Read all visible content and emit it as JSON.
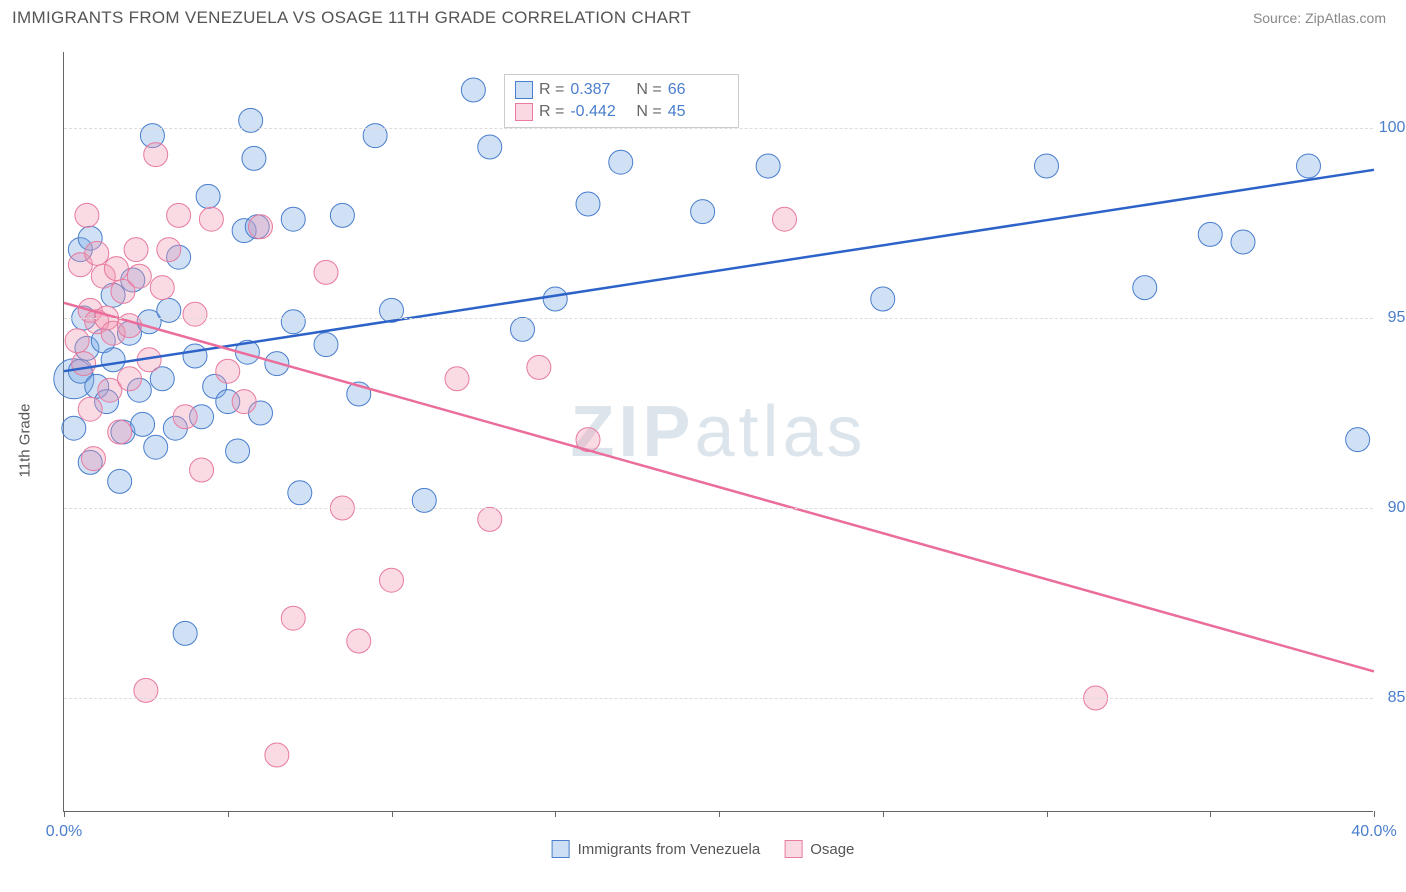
{
  "header": {
    "title": "IMMIGRANTS FROM VENEZUELA VS OSAGE 11TH GRADE CORRELATION CHART",
    "source": "Source: ZipAtlas.com"
  },
  "chart": {
    "type": "scatter",
    "ylabel": "11th Grade",
    "watermark_part1": "ZIP",
    "watermark_part2": "atlas",
    "xlim": [
      0,
      40
    ],
    "ylim": [
      82,
      102
    ],
    "xticks": [
      0,
      5,
      10,
      15,
      20,
      25,
      30,
      35,
      40
    ],
    "xtick_labels_shown": [
      {
        "v": 0,
        "t": "0.0%"
      },
      {
        "v": 40,
        "t": "40.0%"
      }
    ],
    "yticks": [
      {
        "v": 85,
        "t": "85.0%"
      },
      {
        "v": 90,
        "t": "90.0%"
      },
      {
        "v": 95,
        "t": "95.0%"
      },
      {
        "v": 100,
        "t": "100.0%"
      }
    ],
    "grid_color": "#dddddd",
    "background_color": "#ffffff",
    "axis_color": "#666666",
    "tick_label_color": "#4a7ecc",
    "marker_radius": 12,
    "marker_radius_large": 20,
    "series": [
      {
        "name": "Immigrants from Venezuela",
        "color_fill": "rgba(120,170,230,0.35)",
        "color_stroke": "#4a7ecc",
        "trend_color": "#2d63c8",
        "R": "0.387",
        "N": "66",
        "trend": {
          "x1": 0,
          "y1": 93.6,
          "x2": 40,
          "y2": 98.9
        },
        "points": [
          [
            0.3,
            93.4,
            20
          ],
          [
            0.3,
            92.1
          ],
          [
            0.5,
            93.6
          ],
          [
            0.5,
            96.8
          ],
          [
            0.6,
            95.0
          ],
          [
            0.7,
            94.2
          ],
          [
            0.8,
            97.1
          ],
          [
            0.8,
            91.2
          ],
          [
            1.0,
            93.2
          ],
          [
            1.2,
            94.4
          ],
          [
            1.3,
            92.8
          ],
          [
            1.5,
            93.9
          ],
          [
            1.5,
            95.6
          ],
          [
            1.7,
            90.7
          ],
          [
            1.8,
            92.0
          ],
          [
            2.0,
            94.6
          ],
          [
            2.1,
            96.0
          ],
          [
            2.3,
            93.1
          ],
          [
            2.4,
            92.2
          ],
          [
            2.6,
            94.9
          ],
          [
            2.7,
            99.8
          ],
          [
            2.8,
            91.6
          ],
          [
            3.0,
            93.4
          ],
          [
            3.2,
            95.2
          ],
          [
            3.4,
            92.1
          ],
          [
            3.5,
            96.6
          ],
          [
            3.7,
            86.7
          ],
          [
            4.0,
            94.0
          ],
          [
            4.2,
            92.4
          ],
          [
            4.4,
            98.2
          ],
          [
            4.6,
            93.2
          ],
          [
            5.0,
            92.8
          ],
          [
            5.3,
            91.5
          ],
          [
            5.5,
            97.3
          ],
          [
            5.6,
            94.1
          ],
          [
            5.7,
            100.2
          ],
          [
            5.8,
            99.2
          ],
          [
            5.9,
            97.4
          ],
          [
            6.0,
            92.5
          ],
          [
            6.5,
            93.8
          ],
          [
            7.0,
            97.6
          ],
          [
            7.0,
            94.9
          ],
          [
            7.2,
            90.4
          ],
          [
            8.0,
            94.3
          ],
          [
            8.5,
            97.7
          ],
          [
            9.0,
            93.0
          ],
          [
            9.5,
            99.8
          ],
          [
            10.0,
            95.2
          ],
          [
            11.0,
            90.2
          ],
          [
            12.5,
            101.0
          ],
          [
            13.0,
            99.5
          ],
          [
            14.0,
            94.7
          ],
          [
            14.5,
            101.0
          ],
          [
            15.0,
            95.5
          ],
          [
            16.0,
            98.0
          ],
          [
            17.0,
            99.1
          ],
          [
            18.0,
            101.0
          ],
          [
            19.5,
            97.8
          ],
          [
            21.5,
            99.0
          ],
          [
            25.0,
            95.5
          ],
          [
            30.0,
            99.0
          ],
          [
            33.0,
            95.8
          ],
          [
            35.0,
            97.2
          ],
          [
            36.0,
            97.0
          ],
          [
            38.0,
            99.0
          ],
          [
            39.5,
            91.8
          ]
        ]
      },
      {
        "name": "Osage",
        "color_fill": "rgba(240,150,175,0.35)",
        "color_stroke": "#e77ba0",
        "trend_color": "#ea6d9b",
        "R": "-0.442",
        "N": "45",
        "trend": {
          "x1": 0,
          "y1": 95.4,
          "x2": 40,
          "y2": 85.7
        },
        "points": [
          [
            0.4,
            94.4
          ],
          [
            0.5,
            96.4
          ],
          [
            0.6,
            93.8
          ],
          [
            0.7,
            97.7
          ],
          [
            0.8,
            95.2
          ],
          [
            0.8,
            92.6
          ],
          [
            0.9,
            91.3
          ],
          [
            1.0,
            94.9
          ],
          [
            1.0,
            96.7
          ],
          [
            1.2,
            96.1
          ],
          [
            1.3,
            95.0
          ],
          [
            1.4,
            93.1
          ],
          [
            1.5,
            94.6
          ],
          [
            1.6,
            96.3
          ],
          [
            1.7,
            92.0
          ],
          [
            1.8,
            95.7
          ],
          [
            2.0,
            93.4
          ],
          [
            2.0,
            94.8
          ],
          [
            2.2,
            96.8
          ],
          [
            2.3,
            96.1
          ],
          [
            2.5,
            85.2
          ],
          [
            2.6,
            93.9
          ],
          [
            2.8,
            99.3
          ],
          [
            3.0,
            95.8
          ],
          [
            3.2,
            96.8
          ],
          [
            3.5,
            97.7
          ],
          [
            3.7,
            92.4
          ],
          [
            4.0,
            95.1
          ],
          [
            4.2,
            91.0
          ],
          [
            4.5,
            97.6
          ],
          [
            5.0,
            93.6
          ],
          [
            5.5,
            92.8
          ],
          [
            6.0,
            97.4
          ],
          [
            6.5,
            83.5
          ],
          [
            7.0,
            87.1
          ],
          [
            8.0,
            96.2
          ],
          [
            8.5,
            90.0
          ],
          [
            9.0,
            86.5
          ],
          [
            10.0,
            88.1
          ],
          [
            12.0,
            93.4
          ],
          [
            13.0,
            89.7
          ],
          [
            14.5,
            93.7
          ],
          [
            16.0,
            91.8
          ],
          [
            22.0,
            97.6
          ],
          [
            31.5,
            85.0
          ]
        ]
      }
    ],
    "legend_top_labels": {
      "R": "R =",
      "N": "N ="
    },
    "legend_bottom": [
      {
        "swatch": "blue",
        "label": "Immigrants from Venezuela"
      },
      {
        "swatch": "pink",
        "label": "Osage"
      }
    ]
  }
}
